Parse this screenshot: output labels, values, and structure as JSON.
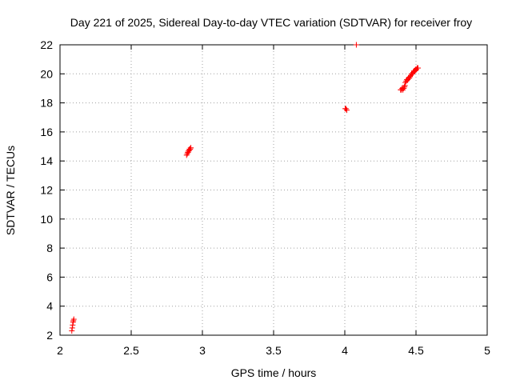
{
  "chart_data": {
    "type": "scatter",
    "title": "Day 221 of 2025, Sidereal Day-to-day VTEC variation (SDTVAR) for receiver froy",
    "xlabel": "GPS time / hours",
    "ylabel": "SDTVAR / TECUs",
    "xlim": [
      2,
      5
    ],
    "ylim": [
      2,
      22
    ],
    "x_ticks": [
      2,
      2.5,
      3,
      3.5,
      4,
      4.5,
      5
    ],
    "y_ticks": [
      2,
      4,
      6,
      8,
      10,
      12,
      14,
      16,
      18,
      20,
      22
    ],
    "x_tick_labels": [
      "2",
      "2.5",
      "3",
      "3.5",
      "4",
      "4.5",
      "5"
    ],
    "y_tick_labels": [
      "2",
      "4",
      "6",
      "8",
      "10",
      "12",
      "14",
      "16",
      "18",
      "20",
      "22"
    ],
    "grid": true,
    "marker": "plus",
    "color": "#ff0000",
    "series": [
      {
        "x": [
          2.083,
          2.086,
          2.089,
          2.092,
          2.094,
          2.097,
          2.889,
          2.894,
          2.897,
          2.9,
          2.903,
          2.906,
          2.908,
          2.911,
          2.914,
          2.917,
          2.919,
          4.003,
          4.008,
          4.014,
          4.081,
          4.392,
          4.397,
          4.403,
          4.408,
          4.414,
          4.419,
          4.422,
          4.425,
          4.431,
          4.436,
          4.442,
          4.447,
          4.453,
          4.458,
          4.464,
          4.469,
          4.475,
          4.481,
          4.486,
          4.492,
          4.497,
          4.503,
          4.508,
          4.514
        ],
        "y": [
          2.3,
          2.5,
          2.7,
          2.9,
          3.0,
          3.1,
          14.4,
          14.5,
          14.6,
          14.6,
          14.7,
          14.7,
          14.8,
          14.8,
          14.8,
          14.9,
          14.9,
          17.6,
          17.6,
          17.5,
          22.0,
          18.9,
          18.9,
          19.0,
          18.9,
          19.0,
          19.1,
          19.2,
          19.4,
          19.5,
          19.6,
          19.6,
          19.7,
          19.7,
          19.8,
          19.9,
          20.0,
          20.0,
          20.1,
          20.2,
          20.2,
          20.3,
          20.3,
          20.4,
          20.4
        ]
      }
    ]
  }
}
